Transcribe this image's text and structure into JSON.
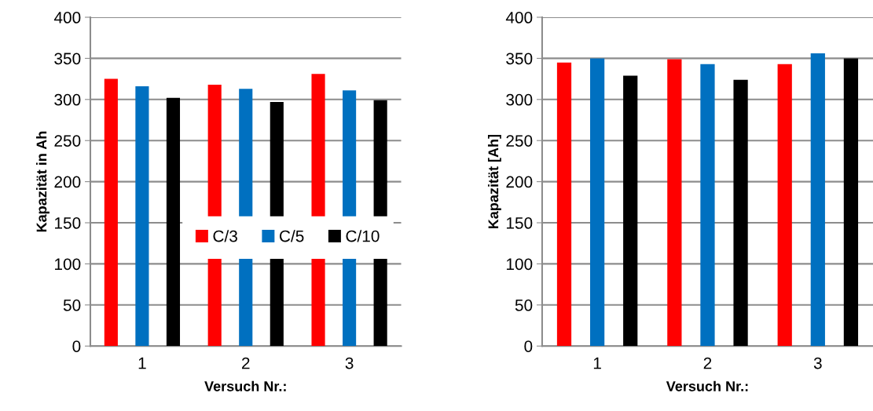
{
  "chart_data": [
    {
      "type": "bar",
      "xlabel": "Versuch Nr.:",
      "ylabel": "Kapazität in Ah",
      "categories": [
        "1",
        "2",
        "3"
      ],
      "ylim": [
        0,
        400
      ],
      "yticks": [
        0,
        50,
        100,
        150,
        200,
        250,
        300,
        350,
        400
      ],
      "grid": "y",
      "legend": "right",
      "series": [
        {
          "name": "C/3",
          "color": "#ff0000",
          "values": [
            325,
            318,
            331
          ]
        },
        {
          "name": "C/5",
          "color": "#0070c0",
          "values": [
            316,
            313,
            311
          ]
        },
        {
          "name": "C/10",
          "color": "#000000",
          "values": [
            302,
            297,
            299
          ]
        }
      ]
    },
    {
      "type": "bar",
      "xlabel": "Versuch Nr.:",
      "ylabel": "Kapazität [Ah]",
      "categories": [
        "1",
        "2",
        "3"
      ],
      "ylim": [
        0,
        400
      ],
      "yticks": [
        0,
        50,
        100,
        150,
        200,
        250,
        300,
        350,
        400
      ],
      "grid": "y",
      "series": [
        {
          "color": "#ff0000",
          "values": [
            345,
            349,
            343
          ]
        },
        {
          "color": "#0070c0",
          "values": [
            350,
            343,
            356
          ]
        },
        {
          "color": "#000000",
          "values": [
            329,
            324,
            350
          ]
        }
      ]
    }
  ]
}
